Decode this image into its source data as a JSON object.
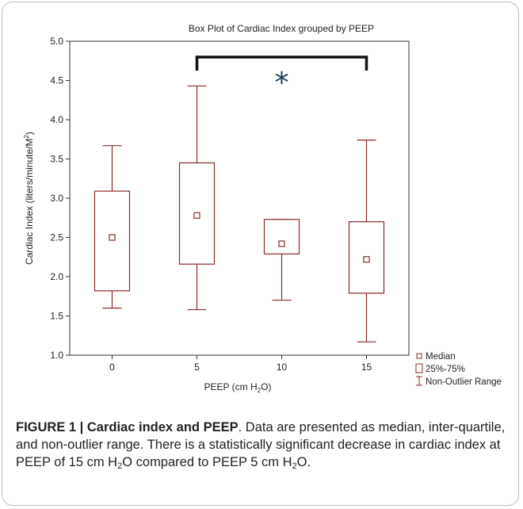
{
  "chart_data": {
    "type": "box",
    "title": "Box Plot of Cardiac Index grouped by PEEP",
    "xlabel": "PEEP (cm H",
    "xlabel_sub": "2",
    "xlabel_end": "O)",
    "ylabel": "Cardiac Index (liters/minute/M",
    "ylabel_sup": "2",
    "ylabel_end": ")",
    "ylim": [
      1.0,
      5.0
    ],
    "yticks": [
      "1.0",
      "1.5",
      "2.0",
      "2.5",
      "3.0",
      "3.5",
      "4.0",
      "4.5",
      "5.0"
    ],
    "categories": [
      "0",
      "5",
      "10",
      "15"
    ],
    "boxes": [
      {
        "category": "0",
        "min": 1.6,
        "q1": 1.82,
        "median": 2.5,
        "q3": 3.09,
        "max": 3.67
      },
      {
        "category": "5",
        "min": 1.58,
        "q1": 2.16,
        "median": 2.78,
        "q3": 3.45,
        "max": 4.43
      },
      {
        "category": "10",
        "min": 1.7,
        "q1": 2.29,
        "median": 2.42,
        "q3": 2.73,
        "max": 2.73
      },
      {
        "category": "15",
        "min": 1.17,
        "q1": 1.79,
        "median": 2.22,
        "q3": 2.7,
        "max": 3.74
      }
    ],
    "significance": {
      "from": "5",
      "to": "15",
      "symbol": "*"
    },
    "legend": {
      "position": "right-bottom",
      "items": [
        "Median",
        "25%-75%",
        "Non-Outlier Range"
      ]
    },
    "colors": {
      "box": "#8b2a2a",
      "bracket": "#111111",
      "star": "#1c3a5e"
    }
  },
  "caption": {
    "label": "FIGURE 1 | Cardiac index and PEEP",
    "text_1": ". Data are presented as median, inter-quartile, and non-outlier range. There is a statistically significant decrease in cardiac index at PEEP of 15 cm H",
    "sub_1": "2",
    "text_2": "O compared to PEEP 5 cm H",
    "sub_2": "2",
    "text_3": "O."
  }
}
